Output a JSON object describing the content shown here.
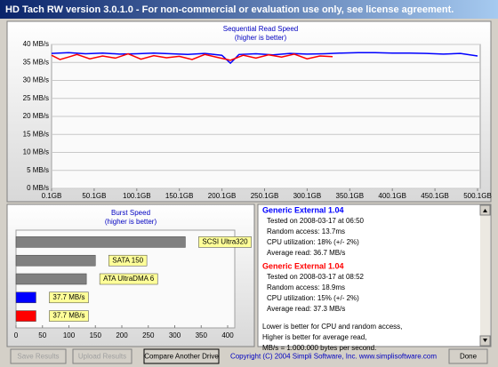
{
  "window": {
    "title": "HD Tach RW version 3.0.1.0  - For non-commercial or evaluation use only, see license agreement."
  },
  "chart_data": [
    {
      "type": "line",
      "title": "Sequential Read Speed",
      "subtitle": "(higher is better)",
      "xlim": [
        0.1,
        500.1
      ],
      "xticks": [
        {
          "value": 0.1,
          "label": "0.1GB"
        },
        {
          "value": 50.1,
          "label": "50.1GB"
        },
        {
          "value": 100.1,
          "label": "100.1GB"
        },
        {
          "value": 150.1,
          "label": "150.1GB"
        },
        {
          "value": 200.1,
          "label": "200.1GB"
        },
        {
          "value": 250.1,
          "label": "250.1GB"
        },
        {
          "value": 300.1,
          "label": "300.1GB"
        },
        {
          "value": 350.1,
          "label": "350.1GB"
        },
        {
          "value": 400.1,
          "label": "400.1GB"
        },
        {
          "value": 450.1,
          "label": "450.1GB"
        },
        {
          "value": 500.1,
          "label": "500.1GB"
        }
      ],
      "ylim": [
        0,
        40
      ],
      "yticks": [
        {
          "value": 0,
          "label": "0 MB/s"
        },
        {
          "value": 5,
          "label": "5 MB/s"
        },
        {
          "value": 10,
          "label": "10 MB/s"
        },
        {
          "value": 15,
          "label": "15 MB/s"
        },
        {
          "value": 20,
          "label": "20 MB/s"
        },
        {
          "value": 25,
          "label": "25 MB/s"
        },
        {
          "value": 30,
          "label": "30 MB/s"
        },
        {
          "value": 35,
          "label": "35 MB/s"
        },
        {
          "value": 40,
          "label": "40 MB/s"
        }
      ],
      "grid": true,
      "series": [
        {
          "color": "#0000ff",
          "x": [
            0.1,
            20,
            40,
            60,
            80,
            100,
            120,
            140,
            160,
            180,
            200,
            210,
            220,
            240,
            260,
            280,
            300,
            320,
            340,
            360,
            380,
            400,
            420,
            440,
            460,
            480,
            500.1
          ],
          "values": [
            37.5,
            37.7,
            37.4,
            37.6,
            37.3,
            37.4,
            37.6,
            37.4,
            37.2,
            37.5,
            37.0,
            34.8,
            37.2,
            37.4,
            37.1,
            37.5,
            37.3,
            37.4,
            37.6,
            37.7,
            37.7,
            37.6,
            37.6,
            37.5,
            37.3,
            37.5,
            36.8
          ]
        },
        {
          "color": "#ff0000",
          "x": [
            0.1,
            10,
            20,
            30,
            45,
            60,
            75,
            90,
            105,
            120,
            135,
            150,
            165,
            180,
            195,
            210,
            225,
            240,
            255,
            270,
            285,
            300,
            315,
            330
          ],
          "values": [
            37.0,
            35.8,
            36.5,
            37.2,
            36.0,
            36.8,
            36.2,
            37.4,
            35.9,
            36.9,
            36.3,
            36.7,
            35.8,
            37.2,
            36.4,
            35.6,
            37.0,
            36.2,
            37.1,
            36.5,
            37.3,
            36.0,
            36.8,
            36.6
          ]
        }
      ]
    },
    {
      "type": "bar",
      "title": "Burst Speed",
      "subtitle": "(higher is better)",
      "categories": [
        "SCSI Ultra320",
        "SATA 150",
        "ATA UltraDMA 6",
        null,
        null
      ],
      "values": [
        320,
        150,
        133,
        37.7,
        37.7
      ],
      "value_labels": [
        null,
        null,
        null,
        "37.7 MB/s",
        "37.7 MB/s"
      ],
      "colors": [
        "#808080",
        "#808080",
        "#808080",
        "#0000ff",
        "#ff0000"
      ],
      "xlim": [
        0,
        400
      ],
      "xticks": [
        0,
        50,
        100,
        150,
        200,
        250,
        300,
        350,
        400
      ]
    }
  ],
  "results": {
    "drives": [
      {
        "name": "Generic External 1.04",
        "tested": "Tested on 2008-03-17 at 06:50",
        "random_access": "Random access: 13.7ms",
        "cpu": "CPU utilization: 18% (+/- 2%)",
        "average": "Average read: 36.7 MB/s"
      },
      {
        "name": "Generic External 1.04",
        "tested": "Tested on 2008-03-17 at 08:52",
        "random_access": "Random access: 18.9ms",
        "cpu": "CPU utilization: 15% (+/- 2%)",
        "average": "Average read: 37.3 MB/s"
      }
    ],
    "notes": [
      "Lower is better for CPU and random access,",
      "Higher is better for average read,",
      "MB/s = 1.000.000 bytes per second."
    ]
  },
  "buttons": [
    "Save Results",
    "Upload Results",
    "Compare Another Drive",
    "Done"
  ],
  "copyright": "Copyright (C) 2004 Simpli Software, Inc. www.simplisoftware.com"
}
